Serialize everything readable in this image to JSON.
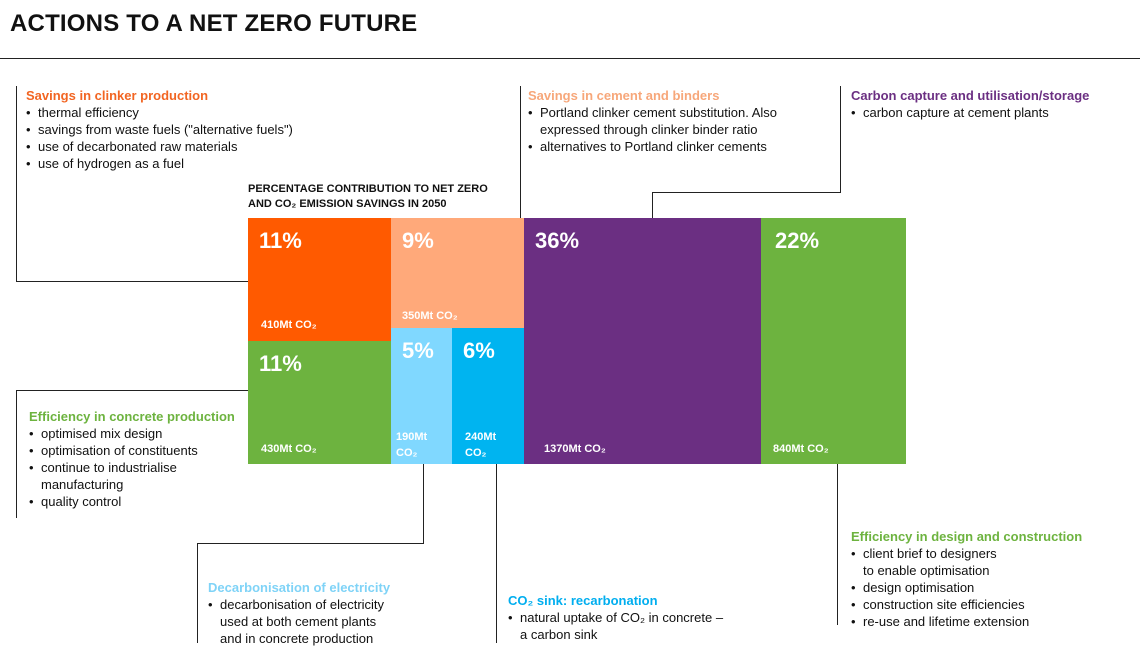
{
  "page": {
    "title": "ACTIONS TO A NET ZERO FUTURE"
  },
  "chart_data": {
    "type": "treemap",
    "title": "PERCENTAGE CONTRIBUTION TO NET ZERO AND CO₂ EMISSION SAVINGS IN 2050",
    "title_line1": "PERCENTAGE CONTRIBUTION TO NET ZERO",
    "title_line2": "AND CO₂ EMISSION SAVINGS IN 2050",
    "segments": [
      {
        "name": "Savings in clinker production",
        "percent": 11,
        "percent_label": "11%",
        "savings_mt": 410,
        "savings_label": "410Mt CO₂",
        "color": "#ff5a00"
      },
      {
        "name": "Savings in cement and binders",
        "percent": 9,
        "percent_label": "9%",
        "savings_mt": 350,
        "savings_label": "350Mt CO₂",
        "color": "#ffa97a"
      },
      {
        "name": "Efficiency in concrete production",
        "percent": 11,
        "percent_label": "11%",
        "savings_mt": 430,
        "savings_label": "430Mt CO₂",
        "color": "#6db33f"
      },
      {
        "name": "Decarbonisation of electricity",
        "percent": 5,
        "percent_label": "5%",
        "savings_mt": 190,
        "savings_label": "190Mt CO₂",
        "savings_line1": "190Mt",
        "savings_line2": "CO₂",
        "color": "#80d8ff"
      },
      {
        "name": "CO₂ sink: recarbonation",
        "percent": 6,
        "percent_label": "6%",
        "savings_mt": 240,
        "savings_label": "240Mt CO₂",
        "savings_line1": "240Mt",
        "savings_line2": "CO₂",
        "color": "#00b4f0"
      },
      {
        "name": "Carbon capture and utilisation/storage",
        "percent": 36,
        "percent_label": "36%",
        "savings_mt": 1370,
        "savings_label": "1370Mt CO₂",
        "color": "#6b2f82"
      },
      {
        "name": "Efficiency in design and construction",
        "percent": 22,
        "percent_label": "22%",
        "savings_mt": 840,
        "savings_label": "840Mt CO₂",
        "color": "#6db33f"
      }
    ]
  },
  "annotations": {
    "clinker": {
      "title": "Savings in clinker production",
      "color": "#f26522",
      "items": [
        "thermal efficiency",
        "savings from waste fuels (\"alternative fuels\")",
        "use of decarbonated raw materials",
        "use of hydrogen as a fuel"
      ]
    },
    "cement": {
      "title": "Savings in cement and binders",
      "color": "#f7a77a",
      "items": [
        "Portland clinker cement substitution. Also",
        "expressed through clinker binder ratio",
        "alternatives to Portland clinker cements"
      ]
    },
    "ccus": {
      "title": "Carbon capture and utilisation/storage",
      "color": "#6b2f82",
      "items": [
        "carbon capture at cement plants"
      ]
    },
    "concrete": {
      "title": "Efficiency in concrete production",
      "color": "#6db33f",
      "items": [
        "optimised mix design",
        "optimisation of constituents",
        "continue to industrialise",
        "manufacturing",
        "quality control"
      ]
    },
    "electricity": {
      "title": "Decarbonisation of electricity",
      "color": "#7fd3f7",
      "items": [
        "decarbonisation of electricity",
        "used at both cement plants",
        "and in concrete production"
      ]
    },
    "recarbonation": {
      "title": "CO₂ sink: recarbonation",
      "color": "#00aeef",
      "items": [
        "natural uptake of CO₂ in concrete –",
        "a carbon sink"
      ]
    },
    "design": {
      "title": "Efficiency in design and construction",
      "color": "#6db33f",
      "items": [
        "client brief to designers",
        "to enable optimisation",
        "design optimisation",
        "construction site efficiencies",
        "re-use and lifetime extension"
      ]
    }
  }
}
